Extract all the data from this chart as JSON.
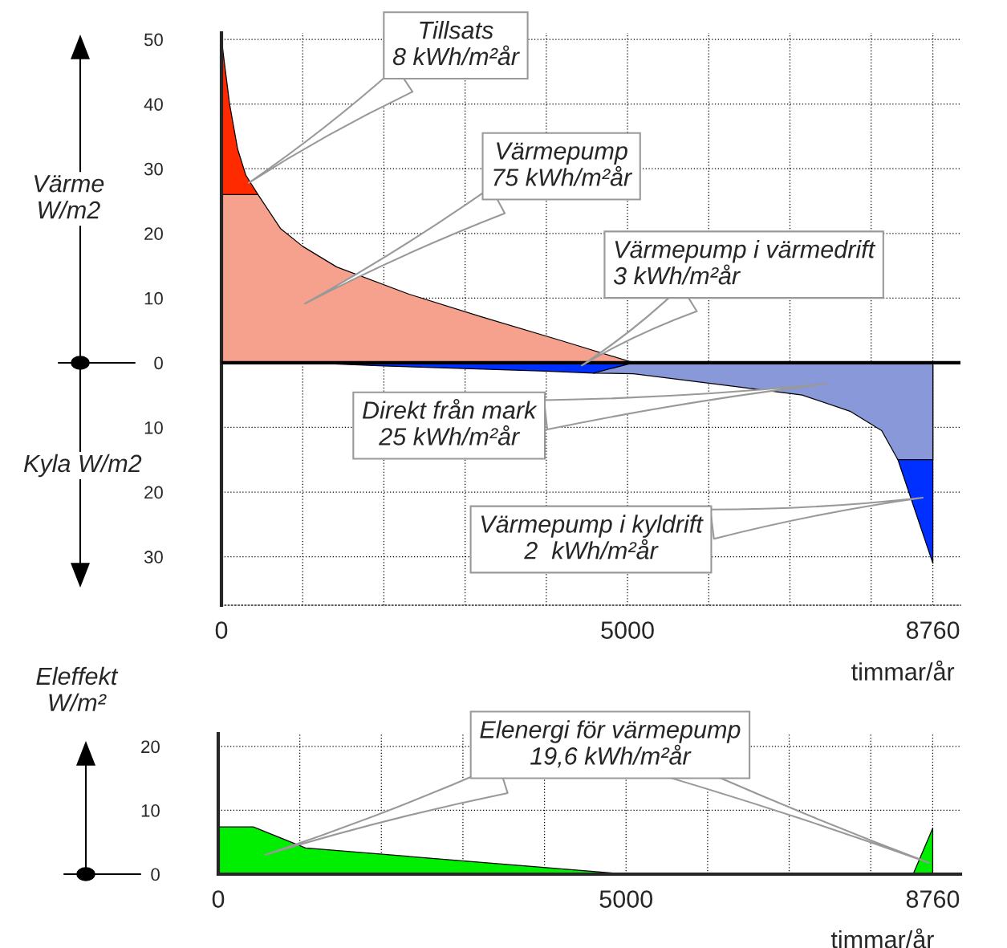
{
  "chart_data": [
    {
      "type": "area",
      "ylabel": "Värme\nW/m2",
      "xlabel": "timmar/år",
      "series": [
        {
          "color": "#ff2a00",
          "x": [
            0,
            50,
            100,
            200,
            300,
            450
          ],
          "values": [
            50,
            45,
            40,
            33,
            29,
            26
          ]
        },
        {
          "color": "#f6a08e",
          "x": [
            0,
            450,
            730,
            1000,
            1420,
            2310,
            3200,
            4190,
            5075
          ],
          "values": [
            26,
            26,
            20.7,
            18,
            14.8,
            10.6,
            7.1,
            3.4,
            0
          ]
        },
        {
          "color": "#0030ff",
          "x": [
            8330,
            8760
          ],
          "values": [
            -15,
            -31
          ]
        },
        {
          "color": "#8898d8",
          "x": [
            4580,
            5075,
            6160,
            7150,
            7740,
            8130,
            8330,
            8760
          ],
          "values": [
            -1.6,
            -1.7,
            -3.4,
            -5,
            -7.5,
            -10.5,
            -15,
            -15
          ]
        },
        {
          "color": "#0030ff",
          "x": [
            1030,
            2000,
            3000,
            4000,
            4580,
            5075
          ],
          "values": [
            0,
            -0.5,
            -0.9,
            -1.3,
            -1.6,
            0
          ]
        }
      ],
      "xlim": [
        0,
        9100
      ],
      "ylim": [
        -37.5,
        51
      ],
      "xticks": [
        0,
        {
          "value": 1000,
          "label": null
        },
        {
          "value": 2000,
          "label": null
        },
        {
          "value": 3000,
          "label": null
        },
        {
          "value": 4000,
          "label": null
        },
        5000,
        {
          "value": 6000,
          "label": null
        },
        {
          "value": 7000,
          "label": null
        },
        {
          "value": 8000,
          "label": null
        },
        8760
      ],
      "yticks": [
        {
          "value": -30,
          "label": "30"
        },
        {
          "value": -20,
          "label": "20"
        },
        {
          "value": -10,
          "label": "10"
        },
        0,
        10,
        20,
        30,
        40,
        50
      ],
      "ref_lines": [
        {
          "axis": "y",
          "value": 0,
          "color": "#000000"
        }
      ],
      "grid": true,
      "legend": false,
      "annotations": [
        "Tillsats\n8 kWh/m²år",
        "Värmepump\n75 kWh/m²år",
        "Värmepump i värmedrift\n3 kWh/m²år",
        "Direkt från mark\n25 kWh/m²år",
        "Värmepump i kyldrift\n2  kWh/m²år",
        "Kyla W/m2"
      ]
    },
    {
      "type": "area",
      "ylabel": "Eleffekt\nW/m²",
      "xlabel": "timmar/år",
      "x": [
        0,
        430,
        1070,
        5000,
        8520,
        8760
      ],
      "series": [
        {
          "color": "#00ee00",
          "values": [
            7.4,
            7.4,
            4.1,
            0,
            0,
            7.2
          ]
        }
      ],
      "xlim": [
        0,
        9100
      ],
      "ylim": [
        0,
        22
      ],
      "xticks": [
        0,
        {
          "value": 1000,
          "label": null
        },
        {
          "value": 2000,
          "label": null
        },
        {
          "value": 3000,
          "label": null
        },
        {
          "value": 4000,
          "label": null
        },
        5000,
        {
          "value": 6000,
          "label": null
        },
        {
          "value": 7000,
          "label": null
        },
        {
          "value": 8000,
          "label": null
        },
        8760
      ],
      "yticks": [
        0,
        10,
        20
      ],
      "grid": true,
      "legend": false,
      "annotations": [
        "Elenergi för värmepump\n19,6 kWh/m²år"
      ]
    }
  ]
}
